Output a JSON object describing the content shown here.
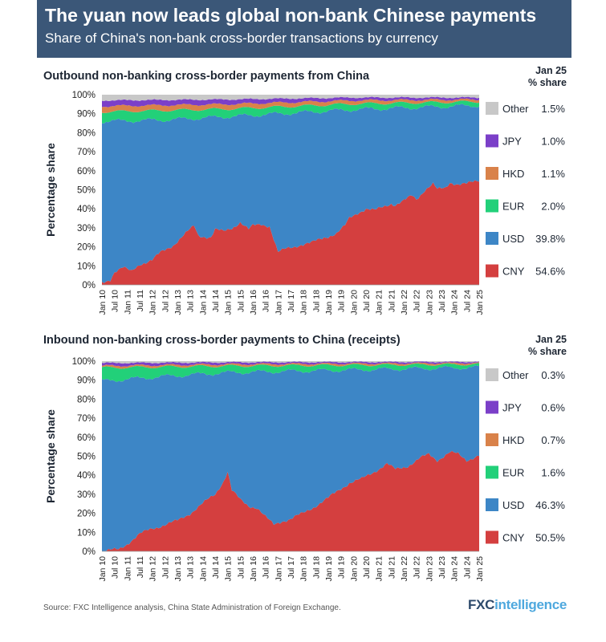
{
  "header": {
    "title": "The yuan now leads global non-bank Chinese payments",
    "subtitle": "Share of China's non-bank cross-border transactions by currency"
  },
  "share_header": {
    "line1": "Jan 25",
    "line2": "% share"
  },
  "colors": {
    "Other": "#c8c8c8",
    "JPY": "#7b3fc8",
    "HKD": "#d9824a",
    "EUR": "#22d079",
    "USD": "#3d86c6",
    "CNY": "#d43f3f",
    "header_bg": "#3b5778"
  },
  "footer": {
    "source": "Source: FXC Intelligence analysis, China State Administration of Foreign Exchange.",
    "logo_main": "FXC",
    "logo_rest": "intelligence"
  },
  "chart_data": [
    {
      "type": "area",
      "title": "Outbound non-banking cross-border payments from China",
      "ylabel": "Percentage share",
      "xlabel": "",
      "ylim": [
        0,
        100
      ],
      "y_ticks": [
        "0%",
        "10%",
        "20%",
        "30%",
        "40%",
        "50%",
        "60%",
        "70%",
        "80%",
        "90%",
        "100%"
      ],
      "x_ticks": [
        "Jan 10",
        "Jul 10",
        "Jan 11",
        "Jul 11",
        "Jan 12",
        "Jul 12",
        "Jan 13",
        "Jul 13",
        "Jan 14",
        "Jul 14",
        "Jan 15",
        "Jul 15",
        "Jan 16",
        "Jul 16",
        "Jan 17",
        "Jul 17",
        "Jan 18",
        "Jul 18",
        "Jan 19",
        "Jul 19",
        "Jan 20",
        "Jul 20",
        "Jan 21",
        "Jul 21",
        "Jan 22",
        "Jul 22",
        "Jan 23",
        "Jul 23",
        "Jan 24",
        "Jul 24",
        "Jan 25"
      ],
      "stack_order": [
        "CNY",
        "USD",
        "EUR",
        "HKD",
        "JPY",
        "Other"
      ],
      "legend": [
        {
          "name": "Other",
          "value": "1.5%"
        },
        {
          "name": "JPY",
          "value": "1.0%"
        },
        {
          "name": "HKD",
          "value": "1.1%"
        },
        {
          "name": "EUR",
          "value": "2.0%"
        },
        {
          "name": "USD",
          "value": "39.8%"
        },
        {
          "name": "CNY",
          "value": "54.6%"
        }
      ],
      "cny_keyframes": [
        [
          0,
          1
        ],
        [
          4,
          3
        ],
        [
          6,
          7
        ],
        [
          10,
          9
        ],
        [
          14,
          7
        ],
        [
          18,
          11
        ],
        [
          24,
          13
        ],
        [
          28,
          17
        ],
        [
          34,
          21
        ],
        [
          40,
          27
        ],
        [
          44,
          31
        ],
        [
          46,
          26
        ],
        [
          52,
          25
        ],
        [
          54,
          29
        ],
        [
          58,
          28
        ],
        [
          62,
          30
        ],
        [
          66,
          33
        ],
        [
          70,
          29
        ],
        [
          72,
          31
        ],
        [
          76,
          32
        ],
        [
          80,
          31
        ],
        [
          84,
          17
        ],
        [
          88,
          19
        ],
        [
          94,
          21
        ],
        [
          100,
          22
        ],
        [
          106,
          25
        ],
        [
          112,
          27
        ],
        [
          116,
          31
        ],
        [
          118,
          35
        ],
        [
          122,
          38
        ],
        [
          126,
          40
        ],
        [
          130,
          39
        ],
        [
          134,
          41
        ],
        [
          138,
          43
        ],
        [
          140,
          42
        ],
        [
          144,
          44
        ],
        [
          148,
          47
        ],
        [
          150,
          45
        ],
        [
          154,
          50
        ],
        [
          158,
          53
        ],
        [
          160,
          50
        ],
        [
          164,
          51
        ],
        [
          166,
          54
        ],
        [
          170,
          53
        ],
        [
          174,
          53
        ],
        [
          180,
          55
        ]
      ],
      "eur_keyframes": [
        [
          0,
          5
        ],
        [
          30,
          5
        ],
        [
          60,
          4
        ],
        [
          90,
          3.5
        ],
        [
          120,
          3
        ],
        [
          150,
          2.5
        ],
        [
          180,
          2
        ]
      ],
      "hkd_keyframes": [
        [
          0,
          3
        ],
        [
          60,
          2.5
        ],
        [
          120,
          1.8
        ],
        [
          180,
          1.1
        ]
      ],
      "jpy_keyframes": [
        [
          0,
          3
        ],
        [
          60,
          2.5
        ],
        [
          120,
          1.5
        ],
        [
          180,
          1
        ]
      ],
      "other_keyframes": [
        [
          0,
          3
        ],
        [
          60,
          2.5
        ],
        [
          120,
          1.5
        ],
        [
          180,
          1.5
        ]
      ]
    },
    {
      "type": "area",
      "title": "Inbound non-banking cross-border payments to China (receipts)",
      "ylabel": "Percentage share",
      "xlabel": "",
      "ylim": [
        0,
        100
      ],
      "y_ticks": [
        "0%",
        "10%",
        "20%",
        "30%",
        "40%",
        "50%",
        "60%",
        "70%",
        "80%",
        "90%",
        "100%"
      ],
      "x_ticks": [
        "Jan 10",
        "Jul 10",
        "Jan 11",
        "Jul 11",
        "Jan 12",
        "Jul 12",
        "Jan 13",
        "Jul 13",
        "Jan 14",
        "Jul 14",
        "Jan 15",
        "Jul 15",
        "Jan 16",
        "Jul 16",
        "Jan 17",
        "Jul 17",
        "Jan 18",
        "Jul 18",
        "Jan 19",
        "Jul 19",
        "Jan 20",
        "Jul 20",
        "Jan 21",
        "Jul 21",
        "Jan 22",
        "Jul 22",
        "Jan 23",
        "Jul 23",
        "Jan 24",
        "Jul 24",
        "Jan 25"
      ],
      "stack_order": [
        "CNY",
        "USD",
        "EUR",
        "HKD",
        "JPY",
        "Other"
      ],
      "legend": [
        {
          "name": "Other",
          "value": "0.3%"
        },
        {
          "name": "JPY",
          "value": "0.6%"
        },
        {
          "name": "HKD",
          "value": "0.7%"
        },
        {
          "name": "EUR",
          "value": "1.6%"
        },
        {
          "name": "USD",
          "value": "46.3%"
        },
        {
          "name": "CNY",
          "value": "50.5%"
        }
      ],
      "cny_keyframes": [
        [
          0,
          0
        ],
        [
          8,
          1
        ],
        [
          12,
          4
        ],
        [
          18,
          9
        ],
        [
          24,
          12
        ],
        [
          30,
          14
        ],
        [
          36,
          16
        ],
        [
          42,
          20
        ],
        [
          48,
          25
        ],
        [
          54,
          30
        ],
        [
          58,
          37
        ],
        [
          60,
          42
        ],
        [
          62,
          32
        ],
        [
          66,
          27
        ],
        [
          70,
          24
        ],
        [
          74,
          23
        ],
        [
          78,
          18
        ],
        [
          82,
          14
        ],
        [
          86,
          16
        ],
        [
          90,
          17
        ],
        [
          96,
          20
        ],
        [
          102,
          24
        ],
        [
          108,
          28
        ],
        [
          114,
          33
        ],
        [
          118,
          36
        ],
        [
          124,
          38
        ],
        [
          130,
          42
        ],
        [
          136,
          46
        ],
        [
          140,
          43
        ],
        [
          146,
          45
        ],
        [
          152,
          49
        ],
        [
          156,
          51
        ],
        [
          160,
          48
        ],
        [
          166,
          52
        ],
        [
          170,
          51
        ],
        [
          174,
          48
        ],
        [
          180,
          50.5
        ]
      ],
      "eur_keyframes": [
        [
          0,
          7
        ],
        [
          30,
          5
        ],
        [
          60,
          3.5
        ],
        [
          120,
          2.5
        ],
        [
          180,
          1.6
        ]
      ],
      "hkd_keyframes": [
        [
          0,
          1
        ],
        [
          60,
          0.9
        ],
        [
          180,
          0.7
        ]
      ],
      "jpy_keyframes": [
        [
          0,
          1.5
        ],
        [
          60,
          1
        ],
        [
          180,
          0.6
        ]
      ],
      "other_keyframes": [
        [
          0,
          1
        ],
        [
          60,
          0.6
        ],
        [
          180,
          0.3
        ]
      ]
    }
  ]
}
